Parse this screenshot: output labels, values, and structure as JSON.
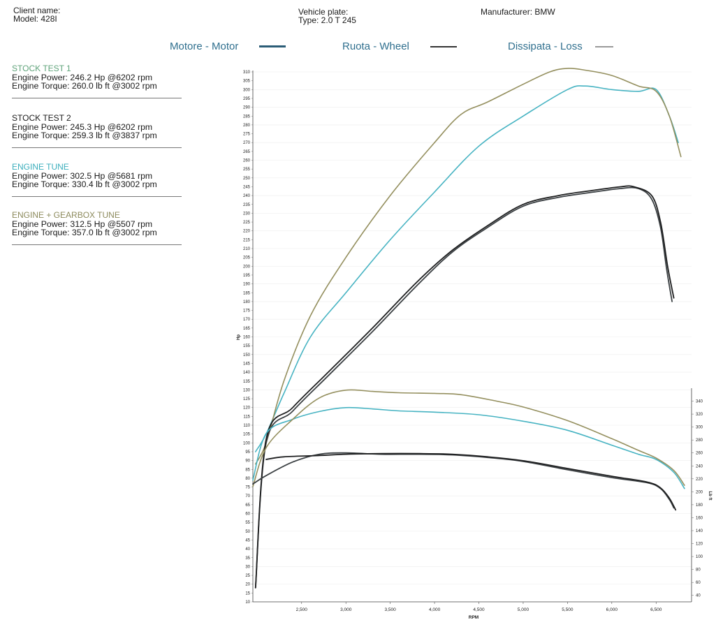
{
  "header": {
    "client_label": "Client name:",
    "model": "Model: 428I",
    "plate_label": "Vehicle plate:",
    "type": "Type: 2.0 T 245",
    "manufacturer": "Manufacturer: BMW"
  },
  "legend": {
    "motor": "Motore - Motor",
    "wheel": "Ruota - Wheel",
    "loss": "Dissipata - Loss"
  },
  "tests": [
    {
      "name": "STOCK TEST 1",
      "power": "Engine Power: 246.2 Hp @6202 rpm",
      "torque": "Engine Torque: 260.0 lb ft @3002 rpm",
      "color": "#5fa37a"
    },
    {
      "name": "STOCK TEST 2",
      "power": "Engine Power: 245.3 Hp @6202 rpm",
      "torque": "Engine Torque: 259.3 lb ft @3837 rpm",
      "color": "#1a1a1a"
    },
    {
      "name": "ENGINE TUNE",
      "power": "Engine Power: 302.5 Hp @5681 rpm",
      "torque": "Engine Torque: 330.4 lb ft @3002 rpm",
      "color": "#3aaebc"
    },
    {
      "name": "ENGINE + GEARBOX TUNE",
      "power": "Engine Power: 312.5 Hp @5507 rpm",
      "torque": "Engine Torque: 357.0 lb ft @3002 rpm",
      "color": "#8c8a5c"
    }
  ],
  "chart_data": {
    "type": "line",
    "xlabel": "RPM",
    "ylabel": "Hp",
    "y2label": "Lb ft",
    "x_ticks": [
      "2,500",
      "3,000",
      "3,500",
      "4,000",
      "4,500",
      "5,000",
      "5,500",
      "6,000",
      "6,500"
    ],
    "x_tick_values": [
      2500,
      3000,
      3500,
      4000,
      4500,
      5000,
      5500,
      6000,
      6500
    ],
    "xlim": [
      1950,
      6900
    ],
    "ylim": [
      10,
      310
    ],
    "y_ticks_step": 5,
    "y2lim": [
      30,
      360
    ],
    "y2_ticks": [
      40,
      60,
      80,
      100,
      120,
      140,
      160,
      180,
      200,
      220,
      240,
      260,
      280,
      300,
      320,
      340
    ],
    "series": [
      {
        "name": "ENGINE TUNE",
        "kind": "power",
        "color": "#46b3c2",
        "points": [
          [
            1980,
            95
          ],
          [
            2100,
            105
          ],
          [
            2300,
            128
          ],
          [
            2600,
            160
          ],
          [
            3000,
            185
          ],
          [
            3500,
            215
          ],
          [
            4000,
            242
          ],
          [
            4500,
            268
          ],
          [
            5000,
            285
          ],
          [
            5500,
            300
          ],
          [
            5700,
            302
          ],
          [
            6000,
            300
          ],
          [
            6300,
            299
          ],
          [
            6500,
            300
          ],
          [
            6650,
            285
          ],
          [
            6750,
            270
          ]
        ]
      },
      {
        "name": "ENGINE + GEARBOX TUNE",
        "kind": "power",
        "color": "#948f5e",
        "points": [
          [
            1980,
            88
          ],
          [
            2100,
            100
          ],
          [
            2300,
            135
          ],
          [
            2600,
            172
          ],
          [
            3000,
            205
          ],
          [
            3500,
            240
          ],
          [
            4000,
            270
          ],
          [
            4300,
            286
          ],
          [
            4600,
            293
          ],
          [
            5000,
            303
          ],
          [
            5300,
            310
          ],
          [
            5500,
            312
          ],
          [
            5700,
            311
          ],
          [
            6000,
            308
          ],
          [
            6300,
            302
          ],
          [
            6500,
            299
          ],
          [
            6650,
            285
          ],
          [
            6780,
            262
          ]
        ]
      },
      {
        "name": "STOCK TEST 1",
        "kind": "power",
        "color": "#3a3f42",
        "points": [
          [
            1980,
            18
          ],
          [
            2100,
            100
          ],
          [
            2400,
            118
          ],
          [
            2800,
            138
          ],
          [
            3300,
            163
          ],
          [
            3800,
            189
          ],
          [
            4200,
            208
          ],
          [
            4600,
            222
          ],
          [
            5000,
            234
          ],
          [
            5400,
            239
          ],
          [
            5800,
            242
          ],
          [
            6100,
            244
          ],
          [
            6300,
            244
          ],
          [
            6450,
            238
          ],
          [
            6550,
            222
          ],
          [
            6620,
            198
          ],
          [
            6680,
            180
          ]
        ]
      },
      {
        "name": "STOCK TEST 2",
        "kind": "power",
        "color": "#1e1f20",
        "points": [
          [
            1980,
            18
          ],
          [
            2100,
            102
          ],
          [
            2400,
            120
          ],
          [
            2800,
            140
          ],
          [
            3300,
            165
          ],
          [
            3800,
            191
          ],
          [
            4200,
            209
          ],
          [
            4600,
            223
          ],
          [
            5000,
            235
          ],
          [
            5400,
            240
          ],
          [
            5800,
            243
          ],
          [
            6100,
            245
          ],
          [
            6250,
            245
          ],
          [
            6450,
            240
          ],
          [
            6550,
            225
          ],
          [
            6630,
            200
          ],
          [
            6700,
            182
          ]
        ]
      },
      {
        "name": "ENGINE TUNE",
        "kind": "torque",
        "color": "#46b3c2",
        "points": [
          [
            1950,
            218
          ],
          [
            2100,
            290
          ],
          [
            2400,
            312
          ],
          [
            2700,
            324
          ],
          [
            3000,
            330
          ],
          [
            3300,
            328
          ],
          [
            3600,
            325
          ],
          [
            4000,
            323
          ],
          [
            4500,
            319
          ],
          [
            5000,
            309
          ],
          [
            5500,
            295
          ],
          [
            6000,
            272
          ],
          [
            6300,
            258
          ],
          [
            6500,
            250
          ],
          [
            6700,
            230
          ],
          [
            6820,
            205
          ]
        ]
      },
      {
        "name": "ENGINE + GEARBOX TUNE",
        "kind": "torque",
        "color": "#948f5e",
        "points": [
          [
            1950,
            208
          ],
          [
            2100,
            268
          ],
          [
            2400,
            312
          ],
          [
            2700,
            345
          ],
          [
            3000,
            357
          ],
          [
            3300,
            355
          ],
          [
            3600,
            353
          ],
          [
            4000,
            352
          ],
          [
            4300,
            350
          ],
          [
            4700,
            340
          ],
          [
            5000,
            331
          ],
          [
            5500,
            310
          ],
          [
            6000,
            282
          ],
          [
            6300,
            264
          ],
          [
            6500,
            252
          ],
          [
            6700,
            233
          ],
          [
            6820,
            210
          ]
        ]
      },
      {
        "name": "STOCK TEST 1",
        "kind": "torque",
        "color": "#3a3f42",
        "points": [
          [
            1950,
            212
          ],
          [
            2100,
            225
          ],
          [
            2400,
            246
          ],
          [
            2700,
            258
          ],
          [
            3000,
            260
          ],
          [
            3400,
            258
          ],
          [
            3800,
            258
          ],
          [
            4200,
            257
          ],
          [
            4600,
            253
          ],
          [
            5000,
            247
          ],
          [
            5500,
            234
          ],
          [
            6000,
            222
          ],
          [
            6400,
            214
          ],
          [
            6550,
            205
          ],
          [
            6650,
            188
          ],
          [
            6700,
            175
          ]
        ]
      },
      {
        "name": "STOCK TEST 2",
        "kind": "torque",
        "color": "#1e1f20",
        "points": [
          [
            2100,
            250
          ],
          [
            2300,
            254
          ],
          [
            2700,
            256
          ],
          [
            3000,
            258
          ],
          [
            3400,
            259
          ],
          [
            3837,
            259
          ],
          [
            4200,
            258
          ],
          [
            4600,
            254
          ],
          [
            5000,
            248
          ],
          [
            5500,
            236
          ],
          [
            6000,
            224
          ],
          [
            6400,
            215
          ],
          [
            6550,
            206
          ],
          [
            6650,
            190
          ],
          [
            6720,
            172
          ]
        ]
      }
    ]
  }
}
